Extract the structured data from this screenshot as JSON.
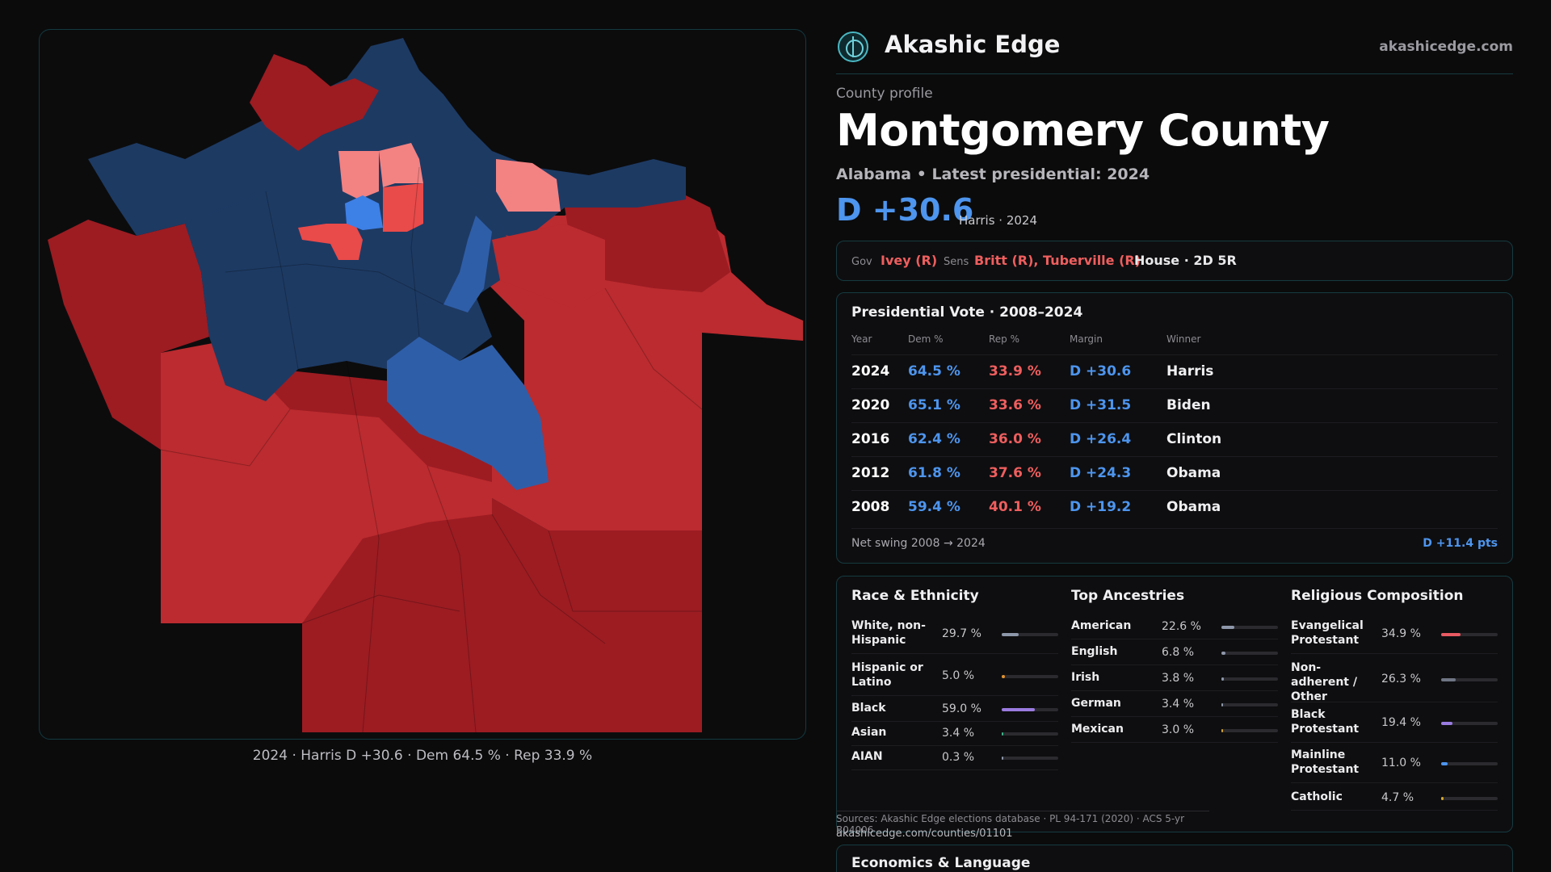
{
  "brand": {
    "name": "Akashic Edge",
    "site": "akashicedge.com"
  },
  "profile": {
    "label": "County profile",
    "title": "Montgomery County",
    "subtitle": "Alabama • Latest presidential: 2024",
    "margin": "D +30.6",
    "margin_detail": "Harris · 2024"
  },
  "officials": {
    "gov_label": "Gov",
    "gov": "Ivey (R)",
    "sens_label": "Sens",
    "sens": "Britt (R), Tuberville (R)",
    "house": "House · 2D 5R"
  },
  "presidential": {
    "title": "Presidential Vote · 2008–2024",
    "headers": [
      "Year",
      "Dem %",
      "Rep %",
      "Margin",
      "Winner"
    ],
    "rows": [
      {
        "year": "2024",
        "dem": "64.5 %",
        "rep": "33.9 %",
        "margin": "D +30.6",
        "winner": "Harris"
      },
      {
        "year": "2020",
        "dem": "65.1 %",
        "rep": "33.6 %",
        "margin": "D +31.5",
        "winner": "Biden"
      },
      {
        "year": "2016",
        "dem": "62.4 %",
        "rep": "36.0 %",
        "margin": "D +26.4",
        "winner": "Clinton"
      },
      {
        "year": "2012",
        "dem": "61.8 %",
        "rep": "37.6 %",
        "margin": "D +24.3",
        "winner": "Obama"
      },
      {
        "year": "2008",
        "dem": "59.4 %",
        "rep": "40.1 %",
        "margin": "D +19.2",
        "winner": "Obama"
      }
    ],
    "swing_label": "Net swing 2008 → 2024",
    "swing_value": "D +11.4 pts"
  },
  "race": {
    "title": "Race & Ethnicity",
    "items": [
      {
        "label": "White, non-Hispanic",
        "value": "29.7 %",
        "pct": 29.7,
        "color": "#8e97aa"
      },
      {
        "label": "Hispanic or Latino",
        "value": "5.0 %",
        "pct": 5.0,
        "color": "#e0922e"
      },
      {
        "label": "Black",
        "value": "59.0 %",
        "pct": 59.0,
        "color": "#9a7be0"
      },
      {
        "label": "Asian",
        "value": "3.4 %",
        "pct": 3.4,
        "color": "#3fb58a"
      },
      {
        "label": "AIAN",
        "value": "0.3 %",
        "pct": 0.3,
        "color": "#8e97aa"
      }
    ]
  },
  "ancestry": {
    "title": "Top Ancestries",
    "items": [
      {
        "label": "American",
        "value": "22.6 %",
        "pct": 22.6,
        "color": "#8e97aa"
      },
      {
        "label": "English",
        "value": "6.8 %",
        "pct": 6.8,
        "color": "#8e97aa"
      },
      {
        "label": "Irish",
        "value": "3.8 %",
        "pct": 3.8,
        "color": "#8e97aa"
      },
      {
        "label": "German",
        "value": "3.4 %",
        "pct": 3.4,
        "color": "#8e97aa"
      },
      {
        "label": "Mexican",
        "value": "3.0 %",
        "pct": 3.0,
        "color": "#d4a630"
      }
    ]
  },
  "religion": {
    "title": "Religious Composition",
    "items": [
      {
        "label": "Evangelical Protestant",
        "value": "34.9 %",
        "pct": 34.9,
        "color": "#e85a62"
      },
      {
        "label": "Non-adherent / Other",
        "value": "26.3 %",
        "pct": 26.3,
        "color": "#6e7584"
      },
      {
        "label": "Black Protestant",
        "value": "19.4 %",
        "pct": 19.4,
        "color": "#9a7be0"
      },
      {
        "label": "Mainline Protestant",
        "value": "11.0 %",
        "pct": 11.0,
        "color": "#4d95ee"
      },
      {
        "label": "Catholic",
        "value": "4.7 %",
        "pct": 4.7,
        "color": "#d4a630"
      }
    ]
  },
  "sources": "Sources: Akashic Edge elections database · PL 94-171 (2020) · ACS 5-yr B04006",
  "source_url": "akashicedge.com/counties/01101",
  "economics_title": "Economics & Language",
  "map": {
    "caption": "2024 · Harris D +30.6 · Dem 64.5 % · Rep 33.9 %",
    "colors": {
      "dem_strong": "#1d3a63",
      "dem_medium": "#2f5ea8",
      "dem_light": "#3d80e6",
      "rep_strong": "#9c1c22",
      "rep_medium": "#bb2b2f",
      "rep_light": "#e94a4a",
      "rep_pale": "#f38282"
    }
  }
}
